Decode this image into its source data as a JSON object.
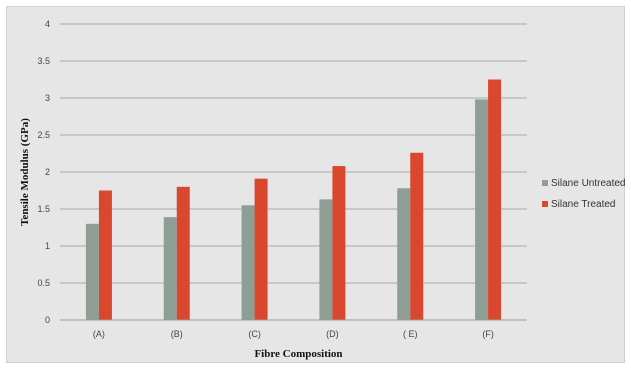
{
  "chart_data": {
    "type": "bar",
    "title": "",
    "xlabel": "Fibre Composition",
    "ylabel": "Tensile Modulus (GPa)",
    "categories": [
      "(A)",
      "(B)",
      "(C)",
      "(D)",
      "( E)",
      "(F)"
    ],
    "ylim": [
      0,
      4
    ],
    "yticks": [
      "0",
      "0.5",
      "1",
      "1.5",
      "2",
      "2.5",
      "3",
      "3.5",
      "4"
    ],
    "grid": true,
    "legend_position": "right",
    "series": [
      {
        "name": "Silane Untreated",
        "color": "#8e9e94",
        "values": [
          1.3,
          1.39,
          1.55,
          1.63,
          1.78,
          2.98
        ]
      },
      {
        "name": "Silane Treated",
        "color": "#d9472f",
        "values": [
          1.75,
          1.8,
          1.91,
          2.08,
          2.26,
          3.25
        ]
      }
    ]
  }
}
